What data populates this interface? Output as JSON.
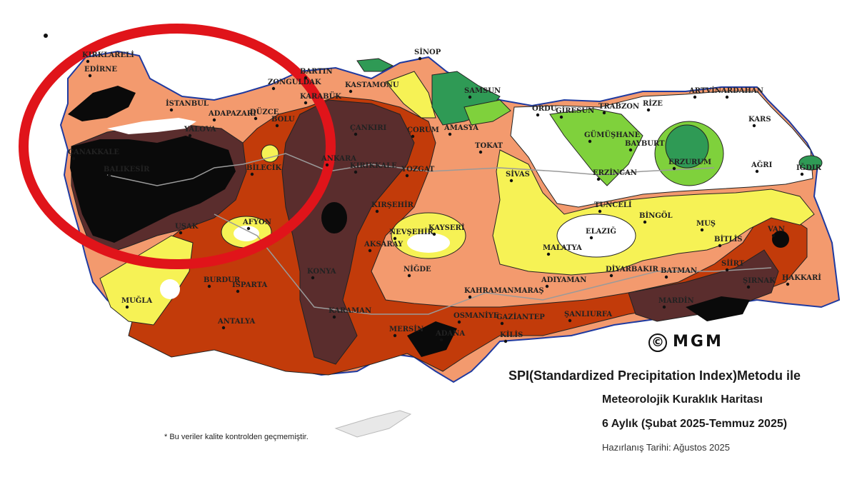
{
  "map": {
    "title_line1": "SPI(Standardized Precipitation Index)Metodu ile",
    "title_line2": "Meteorolojik Kuraklık Haritası",
    "title_line3": "6 Aylık (Şubat 2025-Temmuz 2025)",
    "prepared_date": "Hazırlanış Tarihi: Ağustos 2025",
    "footnote": "* Bu veriler kalite kontrolden geçmemiştir.",
    "logo_text": "MGM",
    "copyright_symbol": "©",
    "colors": {
      "extreme_drought": "#0a0a0a",
      "severe_drought": "#5a2d2d",
      "moderate_drought": "#c23b0a",
      "mild_drought": "#f39a6e",
      "near_normal_dry": "#f6f255",
      "normal": "#ffffff",
      "moist": "#7fd13c",
      "very_moist": "#2f9a55",
      "annotation_circle": "#e0141a",
      "border_line": "#1f3aa0",
      "road_line": "#9a9a9a"
    },
    "cities": [
      {
        "name": "KIRKLARELİ"
      },
      {
        "name": "EDİRNE"
      },
      {
        "name": "İSTANBUL"
      },
      {
        "name": "ÇANAKKALE"
      },
      {
        "name": "BALIKESİR"
      },
      {
        "name": "ADAPAZARI"
      },
      {
        "name": "DÜZCE"
      },
      {
        "name": "BOLU"
      },
      {
        "name": "ZONGULDAK"
      },
      {
        "name": "BARTIN"
      },
      {
        "name": "KARABÜK"
      },
      {
        "name": "KASTAMONU"
      },
      {
        "name": "SİNOP"
      },
      {
        "name": "SAMSUN"
      },
      {
        "name": "AMASYA"
      },
      {
        "name": "ÇORUM"
      },
      {
        "name": "ÇANKIRI"
      },
      {
        "name": "ANKARA"
      },
      {
        "name": "KIRIKKALE"
      },
      {
        "name": "YOZGAT"
      },
      {
        "name": "TOKAT"
      },
      {
        "name": "SİVAS"
      },
      {
        "name": "ORDU"
      },
      {
        "name": "GİRESUN"
      },
      {
        "name": "TRABZON"
      },
      {
        "name": "RİZE"
      },
      {
        "name": "ARTVİN"
      },
      {
        "name": "ARDAHAN"
      },
      {
        "name": "KARS"
      },
      {
        "name": "AĞRI"
      },
      {
        "name": "IĞDIR"
      },
      {
        "name": "GÜMÜŞHANE"
      },
      {
        "name": "BAYBURT"
      },
      {
        "name": "ERZURUM"
      },
      {
        "name": "ERZİNCAN"
      },
      {
        "name": "TUNCELİ"
      },
      {
        "name": "BİNGÖL"
      },
      {
        "name": "MUŞ"
      },
      {
        "name": "BİTLİS"
      },
      {
        "name": "VAN"
      },
      {
        "name": "ELAZIĞ"
      },
      {
        "name": "MALATYA"
      },
      {
        "name": "DİYARBAKIR"
      },
      {
        "name": "BATMAN"
      },
      {
        "name": "SİİRT"
      },
      {
        "name": "ŞIRNAK"
      },
      {
        "name": "HAKKARİ"
      },
      {
        "name": "MARDİN"
      },
      {
        "name": "ADIYAMAN"
      },
      {
        "name": "ŞANLIURFA"
      },
      {
        "name": "GAZİANTEP"
      },
      {
        "name": "KİLİS"
      },
      {
        "name": "OSMANİYE"
      },
      {
        "name": "KAHRAMANMARAŞ"
      },
      {
        "name": "MERSİN"
      },
      {
        "name": "ADANA"
      },
      {
        "name": "KARAMAN"
      },
      {
        "name": "KONYA"
      },
      {
        "name": "AKSARAY"
      },
      {
        "name": "NİĞDE"
      },
      {
        "name": "NEVŞEHİR"
      },
      {
        "name": "KAYSERİ"
      },
      {
        "name": "KIRŞEHİR"
      },
      {
        "name": "AFYON"
      },
      {
        "name": "UŞAK"
      },
      {
        "name": "BURDUR"
      },
      {
        "name": "ISPARTA"
      },
      {
        "name": "ANTALYA"
      },
      {
        "name": "MUĞLA"
      },
      {
        "name": "BİLECİK"
      },
      {
        "name": "YALOVA"
      }
    ]
  }
}
